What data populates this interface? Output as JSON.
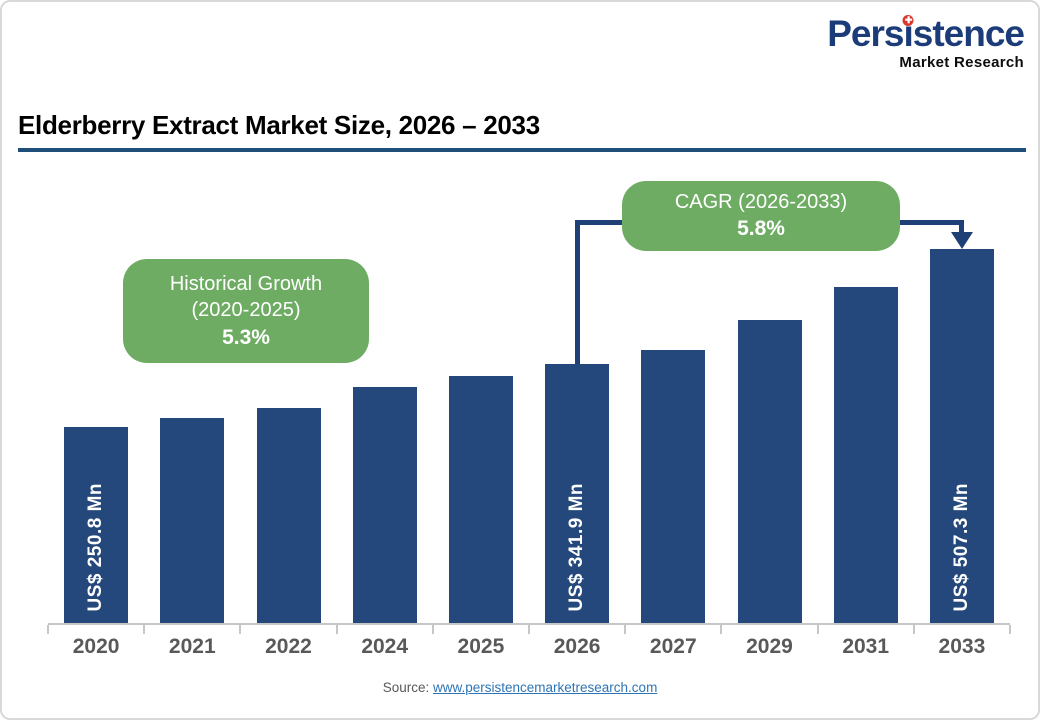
{
  "logo": {
    "brand_pre": "Pers",
    "brand_i": "ı",
    "brand_post": "stence",
    "dot_glyph": "✚",
    "subtitle": "Market Research",
    "brand_color": "#1b3c78",
    "dot_color": "#d9382f"
  },
  "header": {
    "title": "Elderberry Extract Market Size, 2026 – 2033",
    "underline_color": "#1f4e79"
  },
  "annotations": {
    "box_color": "#6eac64",
    "historical": {
      "line1": "Historical Growth",
      "line2": "(2020-2025)",
      "value": "5.3%"
    },
    "cagr": {
      "line1": "CAGR (2026-2033)",
      "value": "5.8%"
    }
  },
  "chart_data": {
    "type": "bar",
    "title": "Elderberry Extract Market Size, 2026 – 2033",
    "unit": "US$ Mn",
    "categories": [
      "2020",
      "2021",
      "2022",
      "2024",
      "2025",
      "2026",
      "2027",
      "2029",
      "2031",
      "2033"
    ],
    "values": [
      250.8,
      264.1,
      278.1,
      308.4,
      324.7,
      341.9,
      361.7,
      404.9,
      453.2,
      507.3
    ],
    "labeled_bars": {
      "2020": "US$ 250.8 Mn",
      "2026": "US$ 341.9 Mn",
      "2033": "US$ 507.3 Mn"
    },
    "connector": {
      "from": "2026",
      "to": "2033"
    },
    "bar_color": "#24477c",
    "connector_color": "#1f4077",
    "axis_color": "#c6c6c6",
    "grid": false,
    "legend": false,
    "y_axis_visible": false,
    "xlabel": "",
    "ylabel": ""
  },
  "footer": {
    "source_label": "Source:",
    "source_link": "www.persistencemarketresearch.com",
    "link_color": "#2e75b6"
  }
}
